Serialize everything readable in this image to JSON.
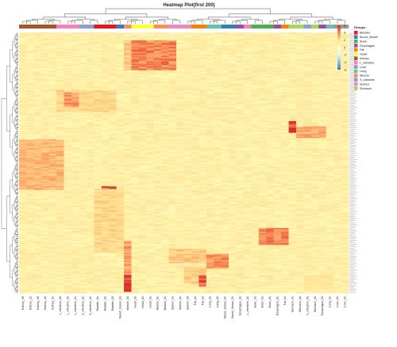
{
  "chart_data": {
    "type": "heatmap",
    "title": "Heatmap Plot(first 200)",
    "columns": [
      {
        "label": "Kidney_09",
        "group": "Kidney"
      },
      {
        "label": "Kidney_12",
        "group": "Kidney"
      },
      {
        "label": "Kidney_08",
        "group": "Kidney"
      },
      {
        "label": "Kidney_10",
        "group": "Kidney"
      },
      {
        "label": "Kidney_11",
        "group": "Kidney"
      },
      {
        "label": "L_intestine_05",
        "group": "L_intestine"
      },
      {
        "label": "L_intestine_03",
        "group": "L_intestine"
      },
      {
        "label": "L_intestine_04",
        "group": "L_intestine"
      },
      {
        "label": "S_intestine_02",
        "group": "S_intestine"
      },
      {
        "label": "S_intestine_01",
        "group": "S_intestine"
      },
      {
        "label": "Bladder_01",
        "group": "Bladder"
      },
      {
        "label": "Bladder_02",
        "group": "Bladder"
      },
      {
        "label": "Bladder_03",
        "group": "Bladder"
      },
      {
        "label": "Blood_Vessel_03",
        "group": "Blood_Vessel"
      },
      {
        "label": "Muscle_03",
        "group": "Muscle"
      },
      {
        "label": "Heart_03",
        "group": "Heart"
      },
      {
        "label": "Heart_02",
        "group": "Heart"
      },
      {
        "label": "Heart_01",
        "group": "Heart"
      },
      {
        "label": "Muscle_02",
        "group": "Muscle"
      },
      {
        "label": "Muscle_01",
        "group": "Muscle"
      },
      {
        "label": "Spleen_01",
        "group": "Spleen"
      },
      {
        "label": "Spleen_02",
        "group": "Spleen"
      },
      {
        "label": "Spleen_03",
        "group": "Spleen"
      },
      {
        "label": "Fat_02",
        "group": "Fat"
      },
      {
        "label": "Fat_03",
        "group": "Fat"
      },
      {
        "label": "Lung_03",
        "group": "Lung"
      },
      {
        "label": "Lung_02",
        "group": "Lung"
      },
      {
        "label": "Blood_Vessel_02",
        "group": "Blood_Vessel"
      },
      {
        "label": "Blood_Vessel_01",
        "group": "Blood_Vessel"
      },
      {
        "label": "Esophagus_02",
        "group": "Esophagus"
      },
      {
        "label": "L_intestine_01",
        "group": "L_intestine"
      },
      {
        "label": "Brain_03",
        "group": "Brain"
      },
      {
        "label": "Brain_01",
        "group": "Brain"
      },
      {
        "label": "Brain_02",
        "group": "Brain"
      },
      {
        "label": "Esophagus_01",
        "group": "Esophagus"
      },
      {
        "label": "Fat_01",
        "group": "Fat"
      },
      {
        "label": "Stomach_01",
        "group": "Stomach"
      },
      {
        "label": "Stomach_02",
        "group": "Stomach"
      },
      {
        "label": "S_intestine_03",
        "group": "S_intestine"
      },
      {
        "label": "Stomach_03",
        "group": "Stomach"
      },
      {
        "label": "Esophagus_03",
        "group": "Esophagus"
      },
      {
        "label": "Lung_01",
        "group": "Lung"
      },
      {
        "label": "Liver_01",
        "group": "Liver"
      },
      {
        "label": "Liver_02",
        "group": "Liver"
      }
    ],
    "legend": {
      "title": "Groups",
      "position": "right",
      "entries": [
        {
          "name": "Bladder",
          "color": "#e41a1c"
        },
        {
          "name": "Blood_Vessel",
          "color": "#377eb8"
        },
        {
          "name": "Brain",
          "color": "#4daf4a"
        },
        {
          "name": "Esophagus",
          "color": "#984ea3"
        },
        {
          "name": "Fat",
          "color": "#ff7f00"
        },
        {
          "name": "Heart",
          "color": "#ffff33"
        },
        {
          "name": "Kidney",
          "color": "#a65628"
        },
        {
          "name": "L_intestine",
          "color": "#f781bf"
        },
        {
          "name": "Liver",
          "color": "#999999"
        },
        {
          "name": "Lung",
          "color": "#66c2a5"
        },
        {
          "name": "Muscle",
          "color": "#fc8d62"
        },
        {
          "name": "S_intestine",
          "color": "#8da0cb"
        },
        {
          "name": "Spleen",
          "color": "#e78ac3"
        },
        {
          "name": "Stomach",
          "color": "#a6d854"
        }
      ]
    },
    "color_scale": {
      "ticks": [
        6,
        4,
        2,
        0,
        -2,
        -4,
        -6
      ],
      "colors": [
        "#d73027",
        "#fc8d59",
        "#fee090",
        "#ffffbf",
        "#e0f3f8",
        "#91bfdb",
        "#4575b4"
      ]
    },
    "row_count": 200,
    "blocks": [
      {
        "rows": [
          6,
          28
        ],
        "cols": [
          15,
          20
        ],
        "value": 4.2
      },
      {
        "rows": [
          6,
          28
        ],
        "cols": [
          14,
          14
        ],
        "value": 2.6
      },
      {
        "rows": [
          44,
          60
        ],
        "cols": [
          5,
          12
        ],
        "value": 2.2
      },
      {
        "rows": [
          46,
          56
        ],
        "cols": [
          6,
          7
        ],
        "value": 4.0
      },
      {
        "rows": [
          68,
          76
        ],
        "cols": [
          36,
          36
        ],
        "value": 6.0
      },
      {
        "rows": [
          72,
          80
        ],
        "cols": [
          37,
          40
        ],
        "value": 3.4
      },
      {
        "rows": [
          82,
          120
        ],
        "cols": [
          0,
          5
        ],
        "value": 3.0
      },
      {
        "rows": [
          118,
          126
        ],
        "cols": [
          11,
          12
        ],
        "value": 5.2
      },
      {
        "rows": [
          120,
          168
        ],
        "cols": [
          10,
          13
        ],
        "value": 2.2
      },
      {
        "rows": [
          160,
          198
        ],
        "cols": [
          14,
          14
        ],
        "value": 3.6
      },
      {
        "rows": [
          186,
          198
        ],
        "cols": [
          14,
          14
        ],
        "value": 5.8
      },
      {
        "rows": [
          150,
          162
        ],
        "cols": [
          32,
          35
        ],
        "value": 4.2
      },
      {
        "rows": [
          166,
          176
        ],
        "cols": [
          20,
          24
        ],
        "value": 2.6
      },
      {
        "rows": [
          170,
          180
        ],
        "cols": [
          25,
          27
        ],
        "value": 4.0
      },
      {
        "rows": [
          180,
          192
        ],
        "cols": [
          22,
          24
        ],
        "value": 2.4
      },
      {
        "rows": [
          186,
          194
        ],
        "cols": [
          24,
          24
        ],
        "value": 5.0
      },
      {
        "rows": [
          186,
          194
        ],
        "cols": [
          41,
          41
        ],
        "value": 4.6
      },
      {
        "rows": [
          186,
          196
        ],
        "cols": [
          38,
          41
        ],
        "value": 1.6
      }
    ]
  }
}
